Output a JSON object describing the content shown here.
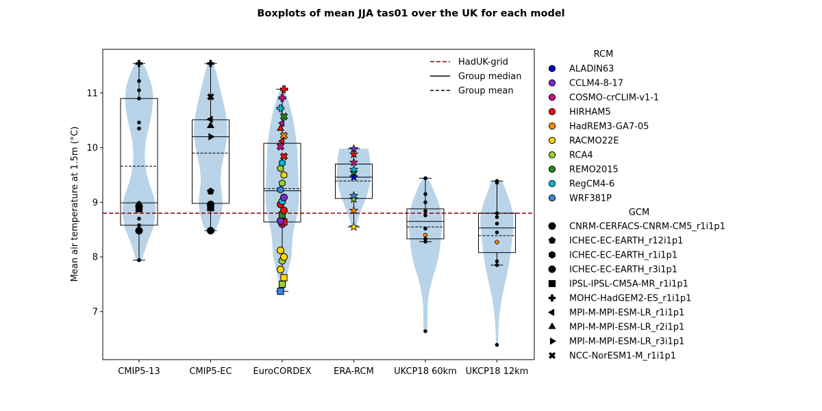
{
  "chart_data": {
    "type": "violin-box-scatter",
    "title": "Boxplots of mean JJA tas01 over the UK for each model",
    "ylabel": "Mean air temperature at 1.5m (°C)",
    "xlabel": "",
    "ylim": [
      6.12,
      11.8
    ],
    "yticks": [
      7,
      8,
      9,
      10,
      11
    ],
    "categories": [
      "CMIP5-13",
      "CMIP5-EC",
      "EuroCORDEX",
      "ERA-RCM",
      "UKCP18 60km",
      "UKCP18 12km"
    ],
    "reference_line": {
      "label": "HadUK-grid",
      "value": 8.8,
      "color": "#8b0000"
    },
    "legend_main": [
      {
        "label": "HadUK-grid",
        "style": "red-dash"
      },
      {
        "label": "Group median",
        "style": "solid"
      },
      {
        "label": "Group mean",
        "style": "dash"
      }
    ],
    "legend_rcm_title": "RCM",
    "legend_rcm": [
      {
        "label": "ALADIN63",
        "color": "#0000cd"
      },
      {
        "label": "CCLM4-8-17",
        "color": "#7b2cc9"
      },
      {
        "label": "COSMO-crCLIM-v1-1",
        "color": "#c71585"
      },
      {
        "label": "HIRHAM5",
        "color": "#ee1111"
      },
      {
        "label": "HadREM3-GA7-05",
        "color": "#ff8c00"
      },
      {
        "label": "RACMO22E",
        "color": "#ffd700"
      },
      {
        "label": "RCA4",
        "color": "#9acd32"
      },
      {
        "label": "REMO2015",
        "color": "#228b22"
      },
      {
        "label": "RegCM4-6",
        "color": "#00bcd4"
      },
      {
        "label": "WRF381P",
        "color": "#3a87e0"
      }
    ],
    "legend_gcm_title": "GCM",
    "legend_gcm": [
      {
        "label": "CNRM-CERFACS-CNRM-CM5_r1i1p1",
        "marker": "circle"
      },
      {
        "label": "ICHEC-EC-EARTH_r12i1p1",
        "marker": "pentagon"
      },
      {
        "label": "ICHEC-EC-EARTH_r1i1p1",
        "marker": "hexagon"
      },
      {
        "label": "ICHEC-EC-EARTH_r3i1p1",
        "marker": "octagon"
      },
      {
        "label": "IPSL-IPSL-CM5A-MR_r1i1p1",
        "marker": "square"
      },
      {
        "label": "MOHC-HadGEM2-ES_r1i1p1",
        "marker": "plus"
      },
      {
        "label": "MPI-M-MPI-ESM-LR_r1i1p1",
        "marker": "tri-left"
      },
      {
        "label": "MPI-M-MPI-ESM-LR_r2i1p1",
        "marker": "tri-up"
      },
      {
        "label": "MPI-M-MPI-ESM-LR_r3i1p1",
        "marker": "tri-right"
      },
      {
        "label": "NCC-NorESM1-M_r1i1p1",
        "marker": "x"
      }
    ],
    "groups": [
      {
        "name": "CMIP5-13",
        "box": {
          "q1": 8.58,
          "median": 8.99,
          "q3": 10.9,
          "mean": 9.66,
          "whisker_low": 7.94,
          "whisker_high": 11.54
        },
        "violin": [
          [
            7.94,
            0.12
          ],
          [
            8.1,
            0.25
          ],
          [
            8.3,
            0.42
          ],
          [
            8.5,
            0.62
          ],
          [
            8.7,
            0.72
          ],
          [
            8.9,
            0.76
          ],
          [
            9.1,
            0.68
          ],
          [
            9.3,
            0.5
          ],
          [
            9.5,
            0.36
          ],
          [
            9.7,
            0.28
          ],
          [
            9.9,
            0.26
          ],
          [
            10.1,
            0.3
          ],
          [
            10.3,
            0.4
          ],
          [
            10.5,
            0.52
          ],
          [
            10.7,
            0.6
          ],
          [
            10.9,
            0.64
          ],
          [
            11.1,
            0.6
          ],
          [
            11.3,
            0.45
          ],
          [
            11.45,
            0.3
          ],
          [
            11.54,
            0.16
          ]
        ],
        "points": [
          {
            "y": 7.94,
            "marker": "dot",
            "color": "#000"
          },
          {
            "y": 8.48,
            "marker": "circle",
            "color": "#000"
          },
          {
            "y": 8.5,
            "marker": "dot",
            "color": "#000"
          },
          {
            "y": 8.58,
            "marker": "dot",
            "color": "#000"
          },
          {
            "y": 8.7,
            "marker": "dot",
            "color": "#000"
          },
          {
            "y": 8.88,
            "marker": "square",
            "color": "#000"
          },
          {
            "y": 8.93,
            "marker": "circle",
            "color": "#000"
          },
          {
            "y": 8.99,
            "marker": "dot",
            "color": "#000"
          },
          {
            "y": 10.35,
            "marker": "dot",
            "color": "#000"
          },
          {
            "y": 10.46,
            "marker": "dot",
            "color": "#000"
          },
          {
            "y": 10.9,
            "marker": "dot",
            "color": "#000"
          },
          {
            "y": 11.05,
            "marker": "dot",
            "color": "#000"
          },
          {
            "y": 11.22,
            "marker": "dot",
            "color": "#000"
          },
          {
            "y": 11.54,
            "marker": "plus",
            "color": "#000"
          }
        ]
      },
      {
        "name": "CMIP5-EC",
        "box": {
          "q1": 8.98,
          "median": 10.2,
          "q3": 10.51,
          "mean": 9.9,
          "whisker_low": 8.48,
          "whisker_high": 11.54
        },
        "violin": [
          [
            8.48,
            0.2
          ],
          [
            8.6,
            0.35
          ],
          [
            8.8,
            0.5
          ],
          [
            9.0,
            0.55
          ],
          [
            9.2,
            0.5
          ],
          [
            9.4,
            0.45
          ],
          [
            9.6,
            0.48
          ],
          [
            9.8,
            0.58
          ],
          [
            10.0,
            0.68
          ],
          [
            10.2,
            0.76
          ],
          [
            10.4,
            0.76
          ],
          [
            10.6,
            0.7
          ],
          [
            10.8,
            0.6
          ],
          [
            11.0,
            0.48
          ],
          [
            11.2,
            0.36
          ],
          [
            11.4,
            0.24
          ],
          [
            11.54,
            0.12
          ]
        ],
        "points": [
          {
            "y": 8.48,
            "marker": "octagon",
            "color": "#000"
          },
          {
            "y": 8.9,
            "marker": "square",
            "color": "#000"
          },
          {
            "y": 8.96,
            "marker": "circle",
            "color": "#000"
          },
          {
            "y": 9.2,
            "marker": "pentagon",
            "color": "#000"
          },
          {
            "y": 10.2,
            "marker": "tri-right",
            "color": "#000"
          },
          {
            "y": 10.4,
            "marker": "tri-up",
            "color": "#000"
          },
          {
            "y": 10.52,
            "marker": "tri-left",
            "color": "#000"
          },
          {
            "y": 10.93,
            "marker": "x",
            "color": "#000"
          },
          {
            "y": 11.54,
            "marker": "plus",
            "color": "#000"
          }
        ]
      },
      {
        "name": "EuroCORDEX",
        "box": {
          "q1": 8.64,
          "median": 9.21,
          "q3": 10.08,
          "mean": 9.25,
          "whisker_low": 7.37,
          "whisker_high": 11.07
        },
        "violin": [
          [
            7.37,
            0.1
          ],
          [
            7.6,
            0.18
          ],
          [
            7.8,
            0.3
          ],
          [
            8.0,
            0.42
          ],
          [
            8.2,
            0.45
          ],
          [
            8.4,
            0.48
          ],
          [
            8.6,
            0.58
          ],
          [
            8.8,
            0.7
          ],
          [
            9.0,
            0.76
          ],
          [
            9.2,
            0.76
          ],
          [
            9.4,
            0.74
          ],
          [
            9.6,
            0.72
          ],
          [
            9.8,
            0.7
          ],
          [
            10.0,
            0.68
          ],
          [
            10.2,
            0.62
          ],
          [
            10.4,
            0.55
          ],
          [
            10.6,
            0.45
          ],
          [
            10.8,
            0.32
          ],
          [
            11.0,
            0.16
          ],
          [
            11.07,
            0.08
          ]
        ],
        "points": [
          {
            "y": 7.37,
            "marker": "square",
            "color": "#3a87e0"
          },
          {
            "y": 7.5,
            "marker": "square",
            "color": "#9acd32"
          },
          {
            "y": 7.62,
            "marker": "square",
            "color": "#ffd700"
          },
          {
            "y": 7.77,
            "marker": "circle",
            "color": "#ffd700"
          },
          {
            "y": 7.93,
            "marker": "circle",
            "color": "#9acd32"
          },
          {
            "y": 8.0,
            "marker": "circle",
            "color": "#ffd700"
          },
          {
            "y": 8.12,
            "marker": "circle",
            "color": "#ffd700"
          },
          {
            "y": 8.6,
            "marker": "circle",
            "color": "#c71585"
          },
          {
            "y": 8.64,
            "marker": "square",
            "color": "#ee1111"
          },
          {
            "y": 8.66,
            "marker": "circle",
            "color": "#7b2cc9"
          },
          {
            "y": 8.77,
            "marker": "square",
            "color": "#228b22"
          },
          {
            "y": 8.85,
            "marker": "circle",
            "color": "#ee1111"
          },
          {
            "y": 8.96,
            "marker": "circle",
            "color": "#ee1111"
          },
          {
            "y": 9.02,
            "marker": "circle",
            "color": "#00bcd4"
          },
          {
            "y": 9.09,
            "marker": "circle",
            "color": "#7b2cc9"
          },
          {
            "y": 9.23,
            "marker": "hexagon",
            "color": "#3a87e0"
          },
          {
            "y": 9.35,
            "marker": "hexagon",
            "color": "#9acd32"
          },
          {
            "y": 9.5,
            "marker": "hexagon",
            "color": "#ffd700"
          },
          {
            "y": 9.62,
            "marker": "hexagon",
            "color": "#9acd32"
          },
          {
            "y": 9.72,
            "marker": "hexagon",
            "color": "#00bcd4"
          },
          {
            "y": 9.84,
            "marker": "x",
            "color": "#ee1111"
          },
          {
            "y": 10.02,
            "marker": "x",
            "color": "#c71585"
          },
          {
            "y": 10.12,
            "marker": "tri-left",
            "color": "#ee1111"
          },
          {
            "y": 10.22,
            "marker": "x",
            "color": "#ff8c00"
          },
          {
            "y": 10.35,
            "marker": "tri-up",
            "color": "#ee1111"
          },
          {
            "y": 10.45,
            "marker": "tri-left",
            "color": "#c71585"
          },
          {
            "y": 10.57,
            "marker": "x",
            "color": "#228b22"
          },
          {
            "y": 10.72,
            "marker": "plus",
            "color": "#00bcd4"
          },
          {
            "y": 10.91,
            "marker": "plus",
            "color": "#c71585"
          },
          {
            "y": 11.07,
            "marker": "plus",
            "color": "#ee1111"
          }
        ]
      },
      {
        "name": "ERA-RCM",
        "box": {
          "q1": 9.07,
          "median": 9.46,
          "q3": 9.7,
          "mean": 9.39,
          "whisker_low": 8.55,
          "whisker_high": 9.98
        },
        "violin": [
          [
            8.55,
            0.1
          ],
          [
            8.7,
            0.2
          ],
          [
            8.9,
            0.38
          ],
          [
            9.1,
            0.58
          ],
          [
            9.3,
            0.72
          ],
          [
            9.5,
            0.78
          ],
          [
            9.7,
            0.76
          ],
          [
            9.85,
            0.72
          ],
          [
            9.98,
            0.66
          ]
        ],
        "points": [
          {
            "y": 8.55,
            "marker": "star",
            "color": "#ffd700"
          },
          {
            "y": 8.85,
            "marker": "star",
            "color": "#ff8c00"
          },
          {
            "y": 9.06,
            "marker": "star",
            "color": "#9acd32"
          },
          {
            "y": 9.12,
            "marker": "star",
            "color": "#3a87e0"
          },
          {
            "y": 9.46,
            "marker": "star",
            "color": "#0000cd"
          },
          {
            "y": 9.55,
            "marker": "star",
            "color": "#228b22"
          },
          {
            "y": 9.6,
            "marker": "star",
            "color": "#00bcd4"
          },
          {
            "y": 9.73,
            "marker": "star",
            "color": "#c71585"
          },
          {
            "y": 9.88,
            "marker": "star",
            "color": "#ee1111"
          },
          {
            "y": 9.98,
            "marker": "star",
            "color": "#7b2cc9"
          }
        ]
      },
      {
        "name": "UKCP18 60km",
        "box": {
          "q1": 8.33,
          "median": 8.65,
          "q3": 8.88,
          "mean": 8.55,
          "whisker_low": 8.28,
          "whisker_high": 9.44
        },
        "violin": [
          [
            6.64,
            0.08
          ],
          [
            6.75,
            0.09
          ],
          [
            7.0,
            0.1
          ],
          [
            7.2,
            0.12
          ],
          [
            7.4,
            0.2
          ],
          [
            7.6,
            0.32
          ],
          [
            7.8,
            0.48
          ],
          [
            8.0,
            0.6
          ],
          [
            8.2,
            0.68
          ],
          [
            8.4,
            0.72
          ],
          [
            8.6,
            0.76
          ],
          [
            8.8,
            0.74
          ],
          [
            9.0,
            0.6
          ],
          [
            9.2,
            0.4
          ],
          [
            9.35,
            0.24
          ],
          [
            9.44,
            0.1
          ]
        ],
        "points": [
          {
            "y": 6.64,
            "marker": "dot",
            "color": "#000"
          },
          {
            "y": 8.28,
            "marker": "dot",
            "color": "#000"
          },
          {
            "y": 8.33,
            "marker": "dot",
            "color": "#000"
          },
          {
            "y": 8.4,
            "marker": "dot",
            "color": "#ff8c00"
          },
          {
            "y": 8.52,
            "marker": "dot",
            "color": "#000"
          },
          {
            "y": 8.76,
            "marker": "dot",
            "color": "#000"
          },
          {
            "y": 8.84,
            "marker": "dot",
            "color": "#000"
          },
          {
            "y": 9.0,
            "marker": "dot",
            "color": "#000"
          },
          {
            "y": 9.15,
            "marker": "dot",
            "color": "#000"
          },
          {
            "y": 9.44,
            "marker": "dot",
            "color": "#000"
          }
        ]
      },
      {
        "name": "UKCP18 12km",
        "box": {
          "q1": 8.08,
          "median": 8.53,
          "q3": 8.8,
          "mean": 8.39,
          "whisker_low": 7.85,
          "whisker_high": 9.39
        },
        "violin": [
          [
            6.39,
            0.04
          ],
          [
            6.6,
            0.06
          ],
          [
            6.9,
            0.1
          ],
          [
            7.2,
            0.2
          ],
          [
            7.5,
            0.36
          ],
          [
            7.8,
            0.52
          ],
          [
            8.0,
            0.6
          ],
          [
            8.2,
            0.66
          ],
          [
            8.4,
            0.72
          ],
          [
            8.6,
            0.76
          ],
          [
            8.8,
            0.74
          ],
          [
            9.0,
            0.6
          ],
          [
            9.2,
            0.42
          ],
          [
            9.39,
            0.24
          ]
        ],
        "points": [
          {
            "y": 6.39,
            "marker": "dot",
            "color": "#000"
          },
          {
            "y": 7.85,
            "marker": "dot",
            "color": "#000"
          },
          {
            "y": 7.92,
            "marker": "dot",
            "color": "#000"
          },
          {
            "y": 8.27,
            "marker": "dot",
            "color": "#ff8c00"
          },
          {
            "y": 8.45,
            "marker": "dot",
            "color": "#000"
          },
          {
            "y": 8.61,
            "marker": "dot",
            "color": "#000"
          },
          {
            "y": 8.73,
            "marker": "dot",
            "color": "#000"
          },
          {
            "y": 8.8,
            "marker": "dot",
            "color": "#000"
          },
          {
            "y": 9.36,
            "marker": "dot",
            "color": "#000"
          },
          {
            "y": 9.39,
            "marker": "dot",
            "color": "#000"
          }
        ]
      }
    ]
  }
}
